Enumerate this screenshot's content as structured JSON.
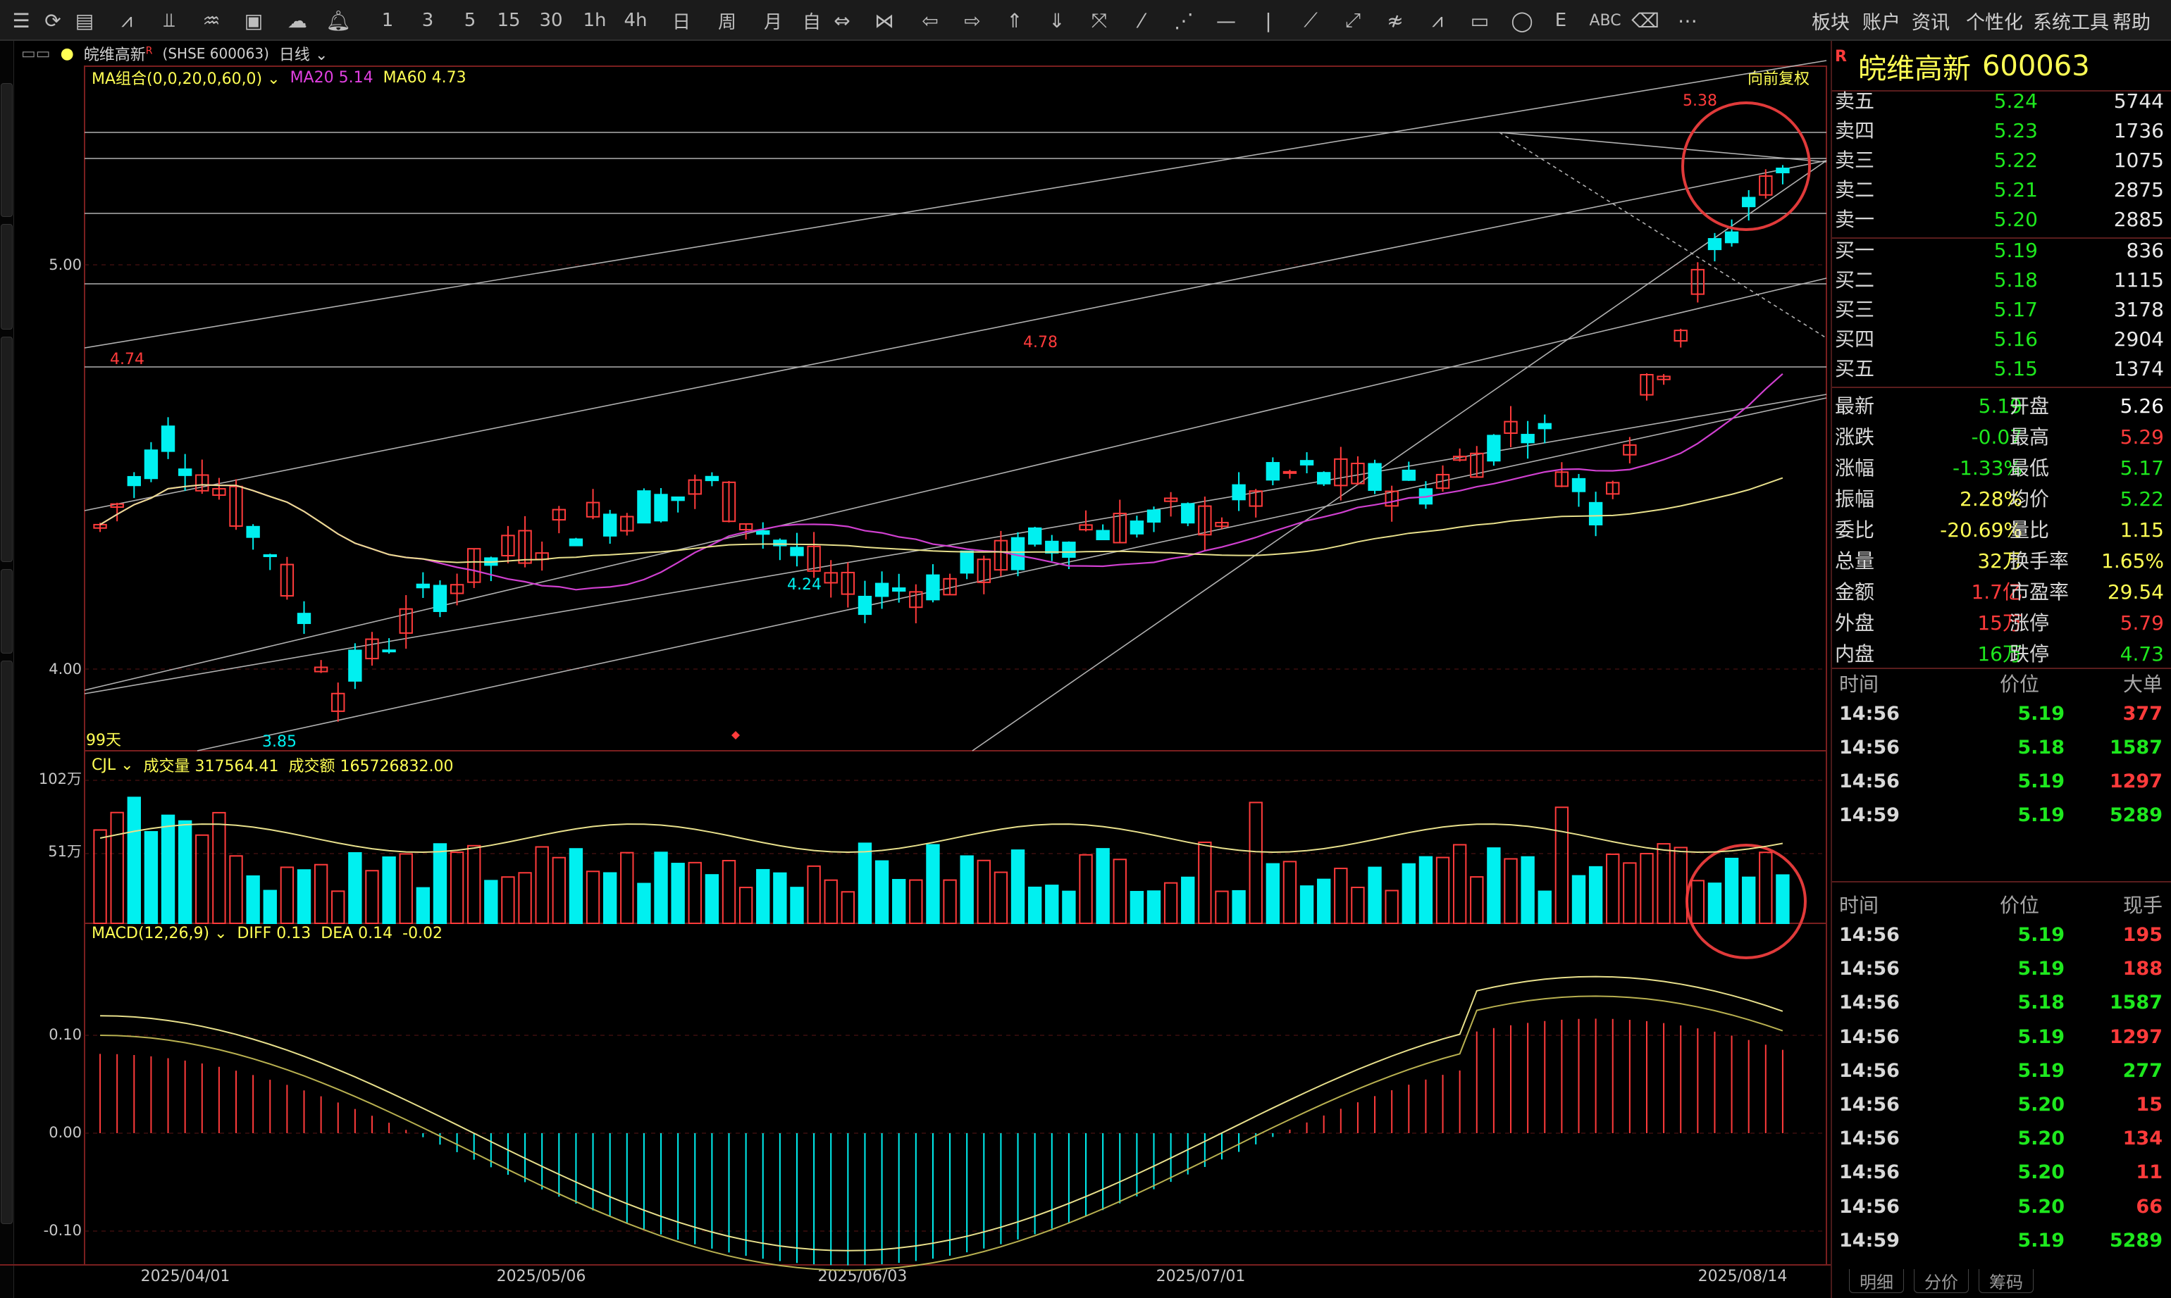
{
  "toolbar": {
    "menu": [
      "板块",
      "账户",
      "资讯",
      "个性化",
      "系统工具",
      "帮助"
    ],
    "period_buttons": [
      "1",
      "3",
      "5",
      "15",
      "30",
      "1h",
      "4h",
      "日",
      "周",
      "月",
      "自"
    ],
    "text_tools": [
      "E",
      "ABC"
    ]
  },
  "header": {
    "stock": "皖维高新",
    "superscript": "R",
    "market": "(SHSE 600063)",
    "period": "日线"
  },
  "price_panel": {
    "ma_label": "MA组合(0,0,20,0,60,0)",
    "ma20": "MA20 5.14",
    "ma60": "MA60 4.73",
    "adjust": "向前复权",
    "days": "99天",
    "axis": [
      "5.00",
      "4.00"
    ],
    "annotations": {
      "high": "5.38",
      "p478": "4.78",
      "p474": "4.74",
      "p424": "4.24",
      "low": "3.85"
    }
  },
  "volume_panel": {
    "label": "CJL",
    "vol_label": "成交量 317564.41",
    "amt_label": "成交额 165726832.00",
    "axis": [
      "102万",
      "51万"
    ]
  },
  "macd_panel": {
    "label": "MACD(12,26,9)",
    "diff": "DIFF 0.13",
    "dea": "DEA 0.14",
    "macd": "-0.02",
    "axis": [
      "0.10",
      "0.00",
      "-0.10"
    ]
  },
  "dates": [
    "2025/04/01",
    "2025/05/06",
    "2025/06/03",
    "2025/07/01",
    "2025/08/14"
  ],
  "chart_data": {
    "type": "candlestick",
    "last_close": 5.19,
    "ylim": [
      3.75,
      5.5
    ],
    "ma20_last": 5.14,
    "ma60_last": 4.73,
    "volume_ylim": [
      0,
      102
    ],
    "macd_ylim": [
      -0.13,
      0.18
    ]
  },
  "quote": {
    "mark": "R",
    "name": "皖维高新",
    "code": "600063",
    "asks": [
      {
        "label": "卖五",
        "price": "5.24",
        "vol": "5744"
      },
      {
        "label": "卖四",
        "price": "5.23",
        "vol": "1736"
      },
      {
        "label": "卖三",
        "price": "5.22",
        "vol": "1075"
      },
      {
        "label": "卖二",
        "price": "5.21",
        "vol": "2875"
      },
      {
        "label": "卖一",
        "price": "5.20",
        "vol": "2885"
      }
    ],
    "bids": [
      {
        "label": "买一",
        "price": "5.19",
        "vol": "836"
      },
      {
        "label": "买二",
        "price": "5.18",
        "vol": "1115"
      },
      {
        "label": "买三",
        "price": "5.17",
        "vol": "3178"
      },
      {
        "label": "买四",
        "price": "5.16",
        "vol": "2904"
      },
      {
        "label": "买五",
        "price": "5.15",
        "vol": "1374"
      }
    ],
    "stats": [
      {
        "l1": "最新",
        "v1": "5.19",
        "c1": "#1ee81e",
        "l2": "开盘",
        "v2": "5.26",
        "c2": "#ffffff"
      },
      {
        "l1": "涨跌",
        "v1": "-0.07",
        "c1": "#1ee81e",
        "l2": "最高",
        "v2": "5.29",
        "c2": "#ff3b3b"
      },
      {
        "l1": "涨幅",
        "v1": "-1.33%",
        "c1": "#1ee81e",
        "l2": "最低",
        "v2": "5.17",
        "c2": "#1ee81e"
      },
      {
        "l1": "振幅",
        "v1": "2.28%",
        "c1": "#ffff54",
        "l2": "均价",
        "v2": "5.22",
        "c2": "#1ee81e"
      },
      {
        "l1": "委比",
        "v1": "-20.69%",
        "c1": "#ffff54",
        "l2": "量比",
        "v2": "1.15",
        "c2": "#ffff54"
      },
      {
        "l1": "总量",
        "v1": "32万",
        "c1": "#ffff54",
        "l2": "换手率",
        "v2": "1.65%",
        "c2": "#ffff54"
      },
      {
        "l1": "金额",
        "v1": "1.7亿",
        "c1": "#ff3b3b",
        "l2": "市盈率",
        "v2": "29.54",
        "c2": "#ffff54"
      },
      {
        "l1": "外盘",
        "v1": "15万",
        "c1": "#ff3b3b",
        "l2": "涨停",
        "v2": "5.79",
        "c2": "#ff3b3b"
      },
      {
        "l1": "内盘",
        "v1": "16万",
        "c1": "#1ee81e",
        "l2": "跌停",
        "v2": "4.73",
        "c2": "#1ee81e"
      }
    ],
    "big_head": {
      "time": "时间",
      "price": "价位",
      "vol": "大单"
    },
    "big_trades": [
      {
        "time": "14:56",
        "price": "5.19",
        "vol": "377",
        "pc": "#1ee81e",
        "vc": "#ff3b3b"
      },
      {
        "time": "14:56",
        "price": "5.18",
        "vol": "1587",
        "pc": "#1ee81e",
        "vc": "#1ee81e"
      },
      {
        "time": "14:56",
        "price": "5.19",
        "vol": "1297",
        "pc": "#1ee81e",
        "vc": "#ff3b3b"
      },
      {
        "time": "14:59",
        "price": "5.19",
        "vol": "5289",
        "pc": "#1ee81e",
        "vc": "#1ee81e"
      }
    ],
    "tick_head": {
      "time": "时间",
      "price": "价位",
      "vol": "现手"
    },
    "ticks": [
      {
        "time": "14:56",
        "price": "5.19",
        "vol": "195",
        "pc": "#1ee81e",
        "vc": "#ff3b3b"
      },
      {
        "time": "14:56",
        "price": "5.19",
        "vol": "188",
        "pc": "#1ee81e",
        "vc": "#ff3b3b"
      },
      {
        "time": "14:56",
        "price": "5.18",
        "vol": "1587",
        "pc": "#1ee81e",
        "vc": "#1ee81e"
      },
      {
        "time": "14:56",
        "price": "5.19",
        "vol": "1297",
        "pc": "#1ee81e",
        "vc": "#ff3b3b"
      },
      {
        "time": "14:56",
        "price": "5.19",
        "vol": "277",
        "pc": "#1ee81e",
        "vc": "#1ee81e"
      },
      {
        "time": "14:56",
        "price": "5.20",
        "vol": "15",
        "pc": "#1ee81e",
        "vc": "#ff3b3b"
      },
      {
        "time": "14:56",
        "price": "5.20",
        "vol": "134",
        "pc": "#1ee81e",
        "vc": "#ff3b3b"
      },
      {
        "time": "14:56",
        "price": "5.20",
        "vol": "11",
        "pc": "#1ee81e",
        "vc": "#ff3b3b"
      },
      {
        "time": "14:56",
        "price": "5.20",
        "vol": "66",
        "pc": "#1ee81e",
        "vc": "#ff3b3b"
      },
      {
        "time": "14:59",
        "price": "5.19",
        "vol": "5289",
        "pc": "#1ee81e",
        "vc": "#1ee81e"
      }
    ],
    "bottom_tabs": [
      "明细",
      "分价",
      "筹码"
    ]
  },
  "colors": {
    "up": "#ff3b3b",
    "down": "#00f0f0",
    "ma20": "#d040d0",
    "ma60": "#e8e08c",
    "accent": "#ffff54"
  }
}
